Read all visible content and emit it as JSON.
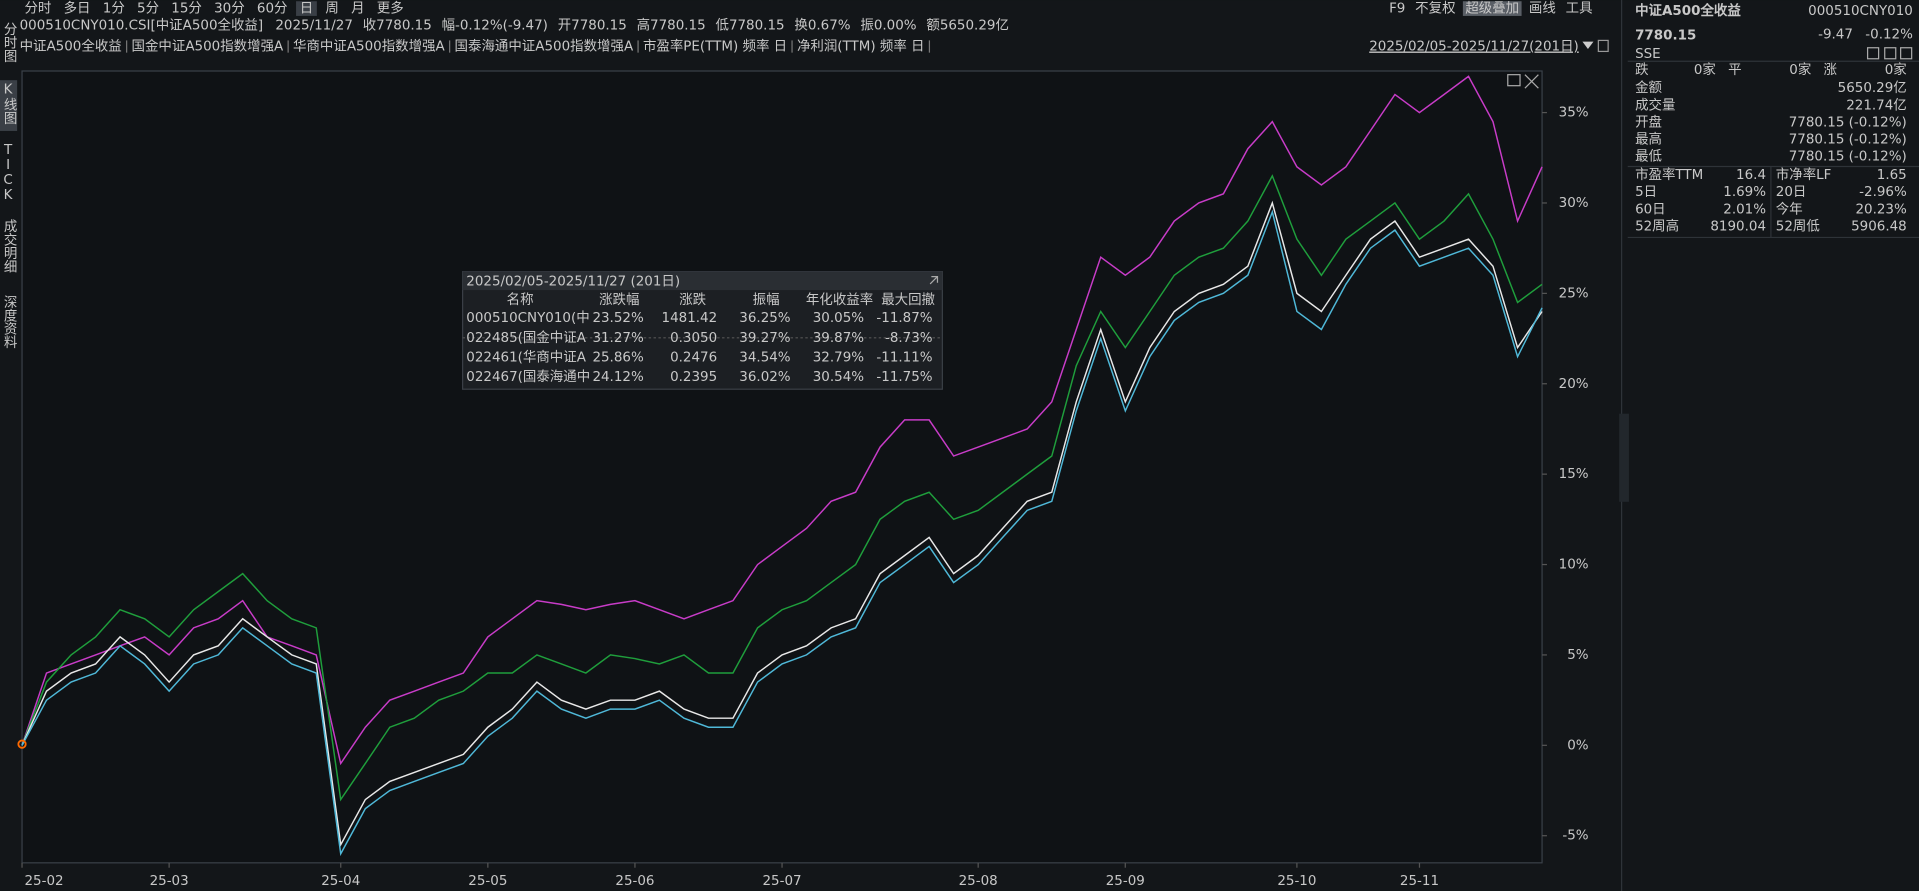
{
  "toolbar": {
    "periods": [
      "分时",
      "多日",
      "1分",
      "5分",
      "15分",
      "30分",
      "60分",
      "日",
      "周",
      "月",
      "更多"
    ],
    "tools": [
      "F9",
      "不复权",
      "超级叠加",
      "画线",
      "工具"
    ]
  },
  "side_tabs": [
    "分时图",
    "K线图",
    "TICK",
    "成交明细",
    "深度资料"
  ],
  "info": {
    "symbol": "000510CNY010.CSI[中证A500全收益]",
    "date": "2025/11/27",
    "fields": [
      {
        "label": "收",
        "value": "7780.15"
      },
      {
        "label": "幅",
        "value": "-0.12%(-9.47)"
      },
      {
        "label": "开",
        "value": "7780.15"
      },
      {
        "label": "高",
        "value": "7780.15"
      },
      {
        "label": "低",
        "value": "7780.15"
      },
      {
        "label": "换",
        "value": "0.67%"
      },
      {
        "label": "振",
        "value": "0.00%"
      },
      {
        "label": "额",
        "value": "5650.29亿"
      }
    ]
  },
  "indicators": [
    "市盈率PE(TTM) 频率 日",
    "净利润(TTM) 频率 日"
  ],
  "range": "2025/02/05-2025/11/27(201日)",
  "chart_data": {
    "type": "line",
    "categories": [
      "25-02",
      null,
      null,
      null,
      null,
      null,
      "25-03",
      null,
      null,
      null,
      null,
      null,
      null,
      "25-04",
      null,
      null,
      null,
      null,
      null,
      "25-05",
      null,
      null,
      null,
      null,
      null,
      "25-06",
      null,
      null,
      null,
      null,
      null,
      "25-07",
      null,
      null,
      null,
      null,
      null,
      null,
      null,
      "25-08",
      null,
      null,
      null,
      null,
      null,
      "25-09",
      null,
      null,
      null,
      null,
      null,
      null,
      "25-10",
      null,
      null,
      null,
      null,
      "25-11",
      null,
      null,
      null,
      null,
      null
    ],
    "series": [
      {
        "name": "中证A500全收益",
        "color": "#e8e8e8",
        "values": [
          0,
          3,
          4,
          4.5,
          6,
          5,
          3.5,
          5,
          5.5,
          7,
          6,
          5,
          4.5,
          -5.5,
          -3,
          -2,
          -1.5,
          -1,
          -0.5,
          1,
          2,
          3.5,
          2.5,
          2,
          2.5,
          2.5,
          3,
          2,
          1.5,
          1.5,
          4,
          5,
          5.5,
          6.5,
          7,
          9.5,
          10.5,
          11.5,
          9.5,
          10.5,
          12,
          13.5,
          14,
          19,
          23,
          19,
          22,
          24,
          25,
          25.5,
          26.5,
          30,
          25,
          24,
          26,
          28,
          29,
          27,
          27.5,
          28,
          26.5,
          22,
          24
        ]
      },
      {
        "name": "国金中证A500指数增强A",
        "color": "#c83cc8",
        "values": [
          0,
          4,
          4.5,
          5,
          5.5,
          6,
          5,
          6.5,
          7,
          8,
          6,
          5.5,
          5,
          -1,
          1,
          2.5,
          3,
          3.5,
          4,
          6,
          7,
          8,
          7.8,
          7.5,
          7.8,
          8,
          7.5,
          7,
          7.5,
          8,
          10,
          11,
          12,
          13.5,
          14,
          16.5,
          18,
          18,
          16,
          16.5,
          17,
          17.5,
          19,
          23,
          27,
          26,
          27,
          29,
          30,
          30.5,
          33,
          34.5,
          32,
          31,
          32,
          34,
          36,
          35,
          36,
          37,
          34.5,
          29,
          32
        ]
      },
      {
        "name": "华商中证A500指数增强A",
        "color": "#1f9e3c",
        "values": [
          0,
          3.5,
          5,
          6,
          7.5,
          7,
          6,
          7.5,
          8.5,
          9.5,
          8,
          7,
          6.5,
          -3,
          -1,
          1,
          1.5,
          2.5,
          3,
          4,
          4,
          5,
          4.5,
          4,
          5,
          4.8,
          4.5,
          5,
          4,
          4,
          6.5,
          7.5,
          8,
          9,
          10,
          12.5,
          13.5,
          14,
          12.5,
          13,
          14,
          15,
          16,
          21,
          24,
          22,
          24,
          26,
          27,
          27.5,
          29,
          31.5,
          28,
          26,
          28,
          29,
          30,
          28,
          29,
          30.5,
          28,
          24.5,
          25.5
        ]
      },
      {
        "name": "国泰海通中证A500指数增强A",
        "color": "#4fb8d8",
        "values": [
          0,
          2.5,
          3.5,
          4,
          5.5,
          4.5,
          3,
          4.5,
          5,
          6.5,
          5.5,
          4.5,
          4,
          -6,
          -3.5,
          -2.5,
          -2,
          -1.5,
          -1,
          0.5,
          1.5,
          3,
          2,
          1.5,
          2,
          2,
          2.5,
          1.5,
          1,
          1,
          3.5,
          4.5,
          5,
          6,
          6.5,
          9,
          10,
          11,
          9,
          10,
          11.5,
          13,
          13.5,
          18.5,
          22.5,
          18.5,
          21.5,
          23.5,
          24.5,
          25,
          26,
          29.5,
          24,
          23,
          25.5,
          27.5,
          28.5,
          26.5,
          27,
          27.5,
          26,
          21.5,
          24.2
        ]
      }
    ],
    "ylim": [
      -6.5,
      37.3
    ],
    "yticks": [
      {
        "value": -5,
        "label": "-5%"
      },
      {
        "value": 0,
        "label": "0%"
      },
      {
        "value": 5,
        "label": "5%"
      },
      {
        "value": 10,
        "label": "10%"
      },
      {
        "value": 15,
        "label": "15%"
      },
      {
        "value": 20,
        "label": "20%"
      },
      {
        "value": 25,
        "label": "25%"
      },
      {
        "value": 30,
        "label": "30%"
      },
      {
        "value": 35,
        "label": "35%"
      }
    ],
    "grid": false
  },
  "stats_popup": {
    "title": "2025/02/05-2025/11/27 (201日)",
    "columns": [
      "名称",
      "涨跌幅",
      "涨跌",
      "振幅",
      "年化收益率",
      "最大回撤"
    ],
    "rows": [
      [
        "000510CNY010(中",
        "23.52%",
        "1481.42",
        "36.25%",
        "30.05%",
        "-11.87%"
      ],
      [
        "022485(国金中证A",
        "31.27%",
        "0.3050",
        "39.27%",
        "39.87%",
        "-8.73%"
      ],
      [
        "022461(华商中证A",
        "25.86%",
        "0.2476",
        "34.54%",
        "32.79%",
        "-11.11%"
      ],
      [
        "022467(国泰海通中",
        "24.12%",
        "0.2395",
        "36.02%",
        "30.54%",
        "-11.75%"
      ]
    ]
  },
  "quote_panel": {
    "name": "中证A500全收益",
    "code": "000510CNY010",
    "price": "7780.15",
    "change": "-9.47",
    "change_pct": "-0.12%",
    "exchange": "SSE",
    "breadth": [
      {
        "label": "跌",
        "value": "0家"
      },
      {
        "label": "平",
        "value": "0家"
      },
      {
        "label": "涨",
        "value": "0家"
      }
    ],
    "rows": [
      {
        "label": "金额",
        "value": "5650.29亿"
      },
      {
        "label": "成交量",
        "value": "221.74亿"
      },
      {
        "label": "开盘",
        "value": "7780.15 (-0.12%)"
      },
      {
        "label": "最高",
        "value": "7780.15 (-0.12%)"
      },
      {
        "label": "最低",
        "value": "7780.15 (-0.12%)"
      }
    ],
    "pairs": [
      [
        {
          "label": "市盈率TTM",
          "value": "16.4"
        },
        {
          "label": "市净率LF",
          "value": "1.65"
        }
      ],
      [
        {
          "label": "5日",
          "value": "1.69%"
        },
        {
          "label": "20日",
          "value": "-2.96%"
        }
      ],
      [
        {
          "label": "60日",
          "value": "2.01%"
        },
        {
          "label": "今年",
          "value": "20.23%"
        }
      ],
      [
        {
          "label": "52周高",
          "value": "8190.04"
        },
        {
          "label": "52周低",
          "value": "5906.48"
        }
      ]
    ]
  }
}
